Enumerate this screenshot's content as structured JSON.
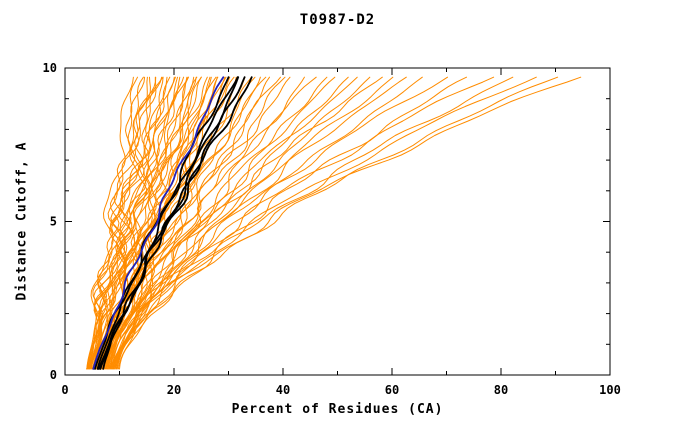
{
  "chart_data": {
    "type": "line",
    "title": "T0987-D2",
    "xlabel": "Percent of Residues (CA)",
    "ylabel": "Distance Cutoff, A",
    "xlim": [
      0,
      100
    ],
    "ylim": [
      0,
      10
    ],
    "xticks": [
      0,
      20,
      40,
      60,
      80,
      100
    ],
    "x_minor_step": 10,
    "yticks": [
      0,
      5,
      10
    ],
    "y_minor_step": 1,
    "grid": false,
    "legend": "none",
    "y_start": 0.2,
    "y_end": 9.7,
    "colors": {
      "predictions": "#FF8C00",
      "highlighted": "#000000",
      "selected": "#2222BB"
    },
    "groups": [
      {
        "name": "other-predictions",
        "color": "#FF8C00",
        "width": 1,
        "wiggle": 1.0,
        "curves": [
          [
            4,
            12,
            1.0
          ],
          [
            4.2,
            13,
            0.95
          ],
          [
            4,
            14,
            1.0
          ],
          [
            4.5,
            14.5,
            1.05
          ],
          [
            4,
            15,
            0.9
          ],
          [
            4.3,
            15.5,
            1.0
          ],
          [
            4.6,
            16,
            1.1
          ],
          [
            4,
            16.5,
            0.95
          ],
          [
            4.8,
            17,
            1.0
          ],
          [
            4.2,
            17.5,
            1.05
          ],
          [
            5,
            18,
            0.9
          ],
          [
            4.4,
            18.5,
            1.0
          ],
          [
            5.2,
            19,
            1.1
          ],
          [
            4.6,
            19.5,
            0.95
          ],
          [
            5,
            20,
            1.0
          ],
          [
            4.8,
            20.5,
            1.1
          ],
          [
            5.4,
            21,
            0.95
          ],
          [
            4.6,
            21.5,
            1.05
          ],
          [
            5.6,
            22,
            1.15
          ],
          [
            5,
            22.5,
            0.9
          ],
          [
            5.8,
            23,
            1.0
          ],
          [
            5.2,
            23.5,
            1.1
          ],
          [
            6,
            24,
            0.95
          ],
          [
            5.4,
            24.5,
            1.05
          ],
          [
            6.2,
            25,
            1.15
          ],
          [
            5.6,
            25.5,
            1.0
          ],
          [
            6.4,
            26,
            1.1
          ],
          [
            5.8,
            26.5,
            0.95
          ],
          [
            6.6,
            27,
            1.05
          ],
          [
            6,
            27.5,
            1.15
          ],
          [
            6.8,
            28,
            1.0
          ],
          [
            6.2,
            28.5,
            1.1
          ],
          [
            7,
            29,
            0.95
          ],
          [
            6.4,
            29.5,
            1.05
          ],
          [
            7.2,
            30,
            1.15
          ],
          [
            6.6,
            31,
            1.2
          ],
          [
            7.4,
            32,
            1.0
          ],
          [
            6.8,
            33,
            1.1
          ],
          [
            7.6,
            34,
            1.25
          ],
          [
            7,
            35,
            1.05
          ],
          [
            7.8,
            36,
            1.15
          ],
          [
            7.2,
            37,
            1.3
          ],
          [
            8,
            38,
            1.1
          ],
          [
            7.4,
            39,
            1.2
          ],
          [
            8.2,
            40,
            1.05
          ],
          [
            7.6,
            42,
            1.3
          ],
          [
            8.4,
            44,
            1.15
          ],
          [
            7.8,
            46,
            1.35
          ],
          [
            8.6,
            48,
            1.2
          ],
          [
            8,
            50,
            1.4
          ],
          [
            8.8,
            52,
            1.25
          ],
          [
            8.2,
            54,
            1.45
          ],
          [
            9,
            56,
            1.3
          ],
          [
            8.4,
            58,
            1.5
          ],
          [
            9.2,
            60,
            1.35
          ],
          [
            8.6,
            63,
            1.5
          ],
          [
            9.4,
            66,
            1.4
          ],
          [
            8.8,
            70,
            1.55
          ],
          [
            9.6,
            74,
            1.45
          ],
          [
            9,
            78,
            1.6
          ],
          [
            9.8,
            82,
            1.5
          ],
          [
            9.2,
            86,
            1.6
          ],
          [
            10,
            90,
            1.55
          ],
          [
            9.5,
            94,
            1.65
          ]
        ]
      },
      {
        "name": "highlighted-predictions",
        "color": "#000000",
        "width": 1.8,
        "wiggle": 0.5,
        "curves": [
          [
            5.5,
            30,
            1.1
          ],
          [
            6,
            31.5,
            1.15
          ],
          [
            6.5,
            33,
            1.1
          ],
          [
            7,
            34.5,
            1.2
          ],
          [
            6.2,
            32,
            1.05
          ]
        ]
      },
      {
        "name": "selected-prediction",
        "color": "#2222BB",
        "width": 1.8,
        "wiggle": 0.5,
        "curves": [
          [
            5.2,
            29,
            1.1
          ]
        ]
      }
    ]
  }
}
